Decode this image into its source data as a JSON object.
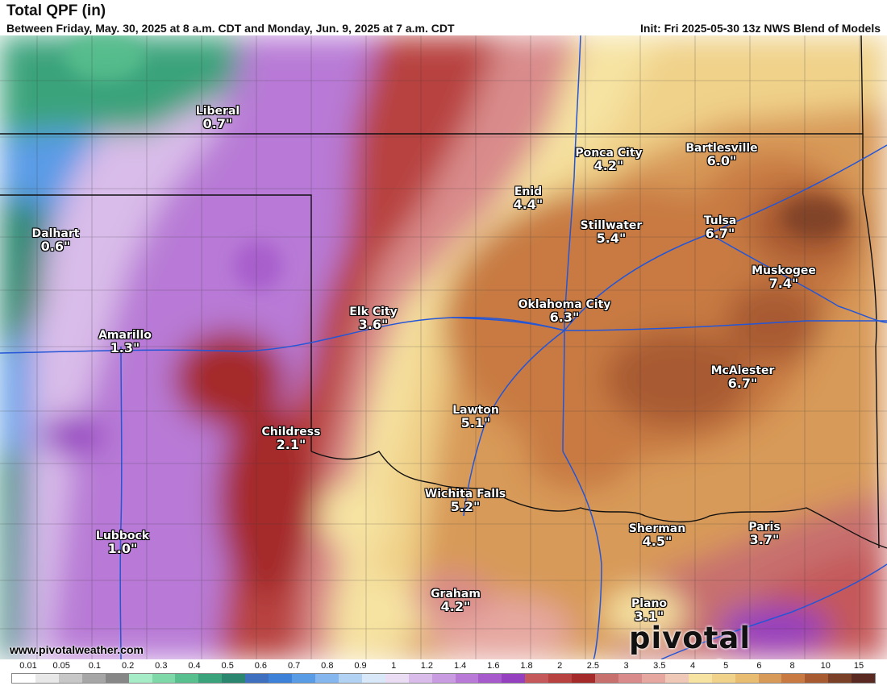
{
  "header": {
    "title": "Total QPF (in)",
    "subtitle": "Between Friday, May. 30, 2025 at 8 a.m. CDT and Monday, Jun. 9, 2025 at 7 a.m. CDT",
    "init": "Init: Fri 2025-05-30 13z NWS Blend of Models"
  },
  "cities": [
    {
      "name": "Liberal",
      "value": "0.7\""
    },
    {
      "name": "Ponca City",
      "value": "4.2\""
    },
    {
      "name": "Bartlesville",
      "value": "6.0\""
    },
    {
      "name": "Enid",
      "value": "4.4\""
    },
    {
      "name": "Stillwater",
      "value": "5.4\""
    },
    {
      "name": "Tulsa",
      "value": "6.7\""
    },
    {
      "name": "Dalhart",
      "value": "0.6\""
    },
    {
      "name": "Muskogee",
      "value": "7.4\""
    },
    {
      "name": "Elk City",
      "value": "3.6\""
    },
    {
      "name": "Oklahoma City",
      "value": "6.3\""
    },
    {
      "name": "Amarillo",
      "value": "1.3\""
    },
    {
      "name": "McAlester",
      "value": "6.7\""
    },
    {
      "name": "Lawton",
      "value": "5.1\""
    },
    {
      "name": "Childress",
      "value": "2.1\""
    },
    {
      "name": "Wichita Falls",
      "value": "5.2\""
    },
    {
      "name": "Sherman",
      "value": "4.5\""
    },
    {
      "name": "Paris",
      "value": "3.7\""
    },
    {
      "name": "Lubbock",
      "value": "1.0\""
    },
    {
      "name": "Graham",
      "value": "4.2\""
    },
    {
      "name": "Plano",
      "value": "3.1\""
    }
  ],
  "footer": {
    "website": "www.pivotalweather.com",
    "brand": "pivotal weather"
  },
  "legend": {
    "ticks": [
      "0.01",
      "0.05",
      "0.1",
      "0.2",
      "0.3",
      "0.4",
      "0.5",
      "0.6",
      "0.7",
      "0.8",
      "0.9",
      "1",
      "1.2",
      "1.4",
      "1.6",
      "1.8",
      "2",
      "2.5",
      "3",
      "3.5",
      "4",
      "5",
      "6",
      "8",
      "10",
      "15"
    ],
    "colors": [
      "#ffffff",
      "#e8e8e8",
      "#c7c7c7",
      "#a6a6a6",
      "#878787",
      "#a6ecc6",
      "#7fd8a8",
      "#58c08e",
      "#3aa37c",
      "#2b8670",
      "#3f6fbf",
      "#3d82d8",
      "#5a9be6",
      "#85b7ee",
      "#b2d2f3",
      "#d8e8f8",
      "#e9dcf3",
      "#d9bce9",
      "#c99be0",
      "#b87ad6",
      "#a65acb",
      "#9440bf",
      "#c4585a",
      "#b8423f",
      "#a52b2b",
      "#c7706e",
      "#d98b8b",
      "#e6a7a0",
      "#f0c8b8",
      "#f6e3a2",
      "#f0d28a",
      "#e8bd72",
      "#d89a58",
      "#c87a42",
      "#a85a30",
      "#7a4028",
      "#5a2a22"
    ]
  }
}
